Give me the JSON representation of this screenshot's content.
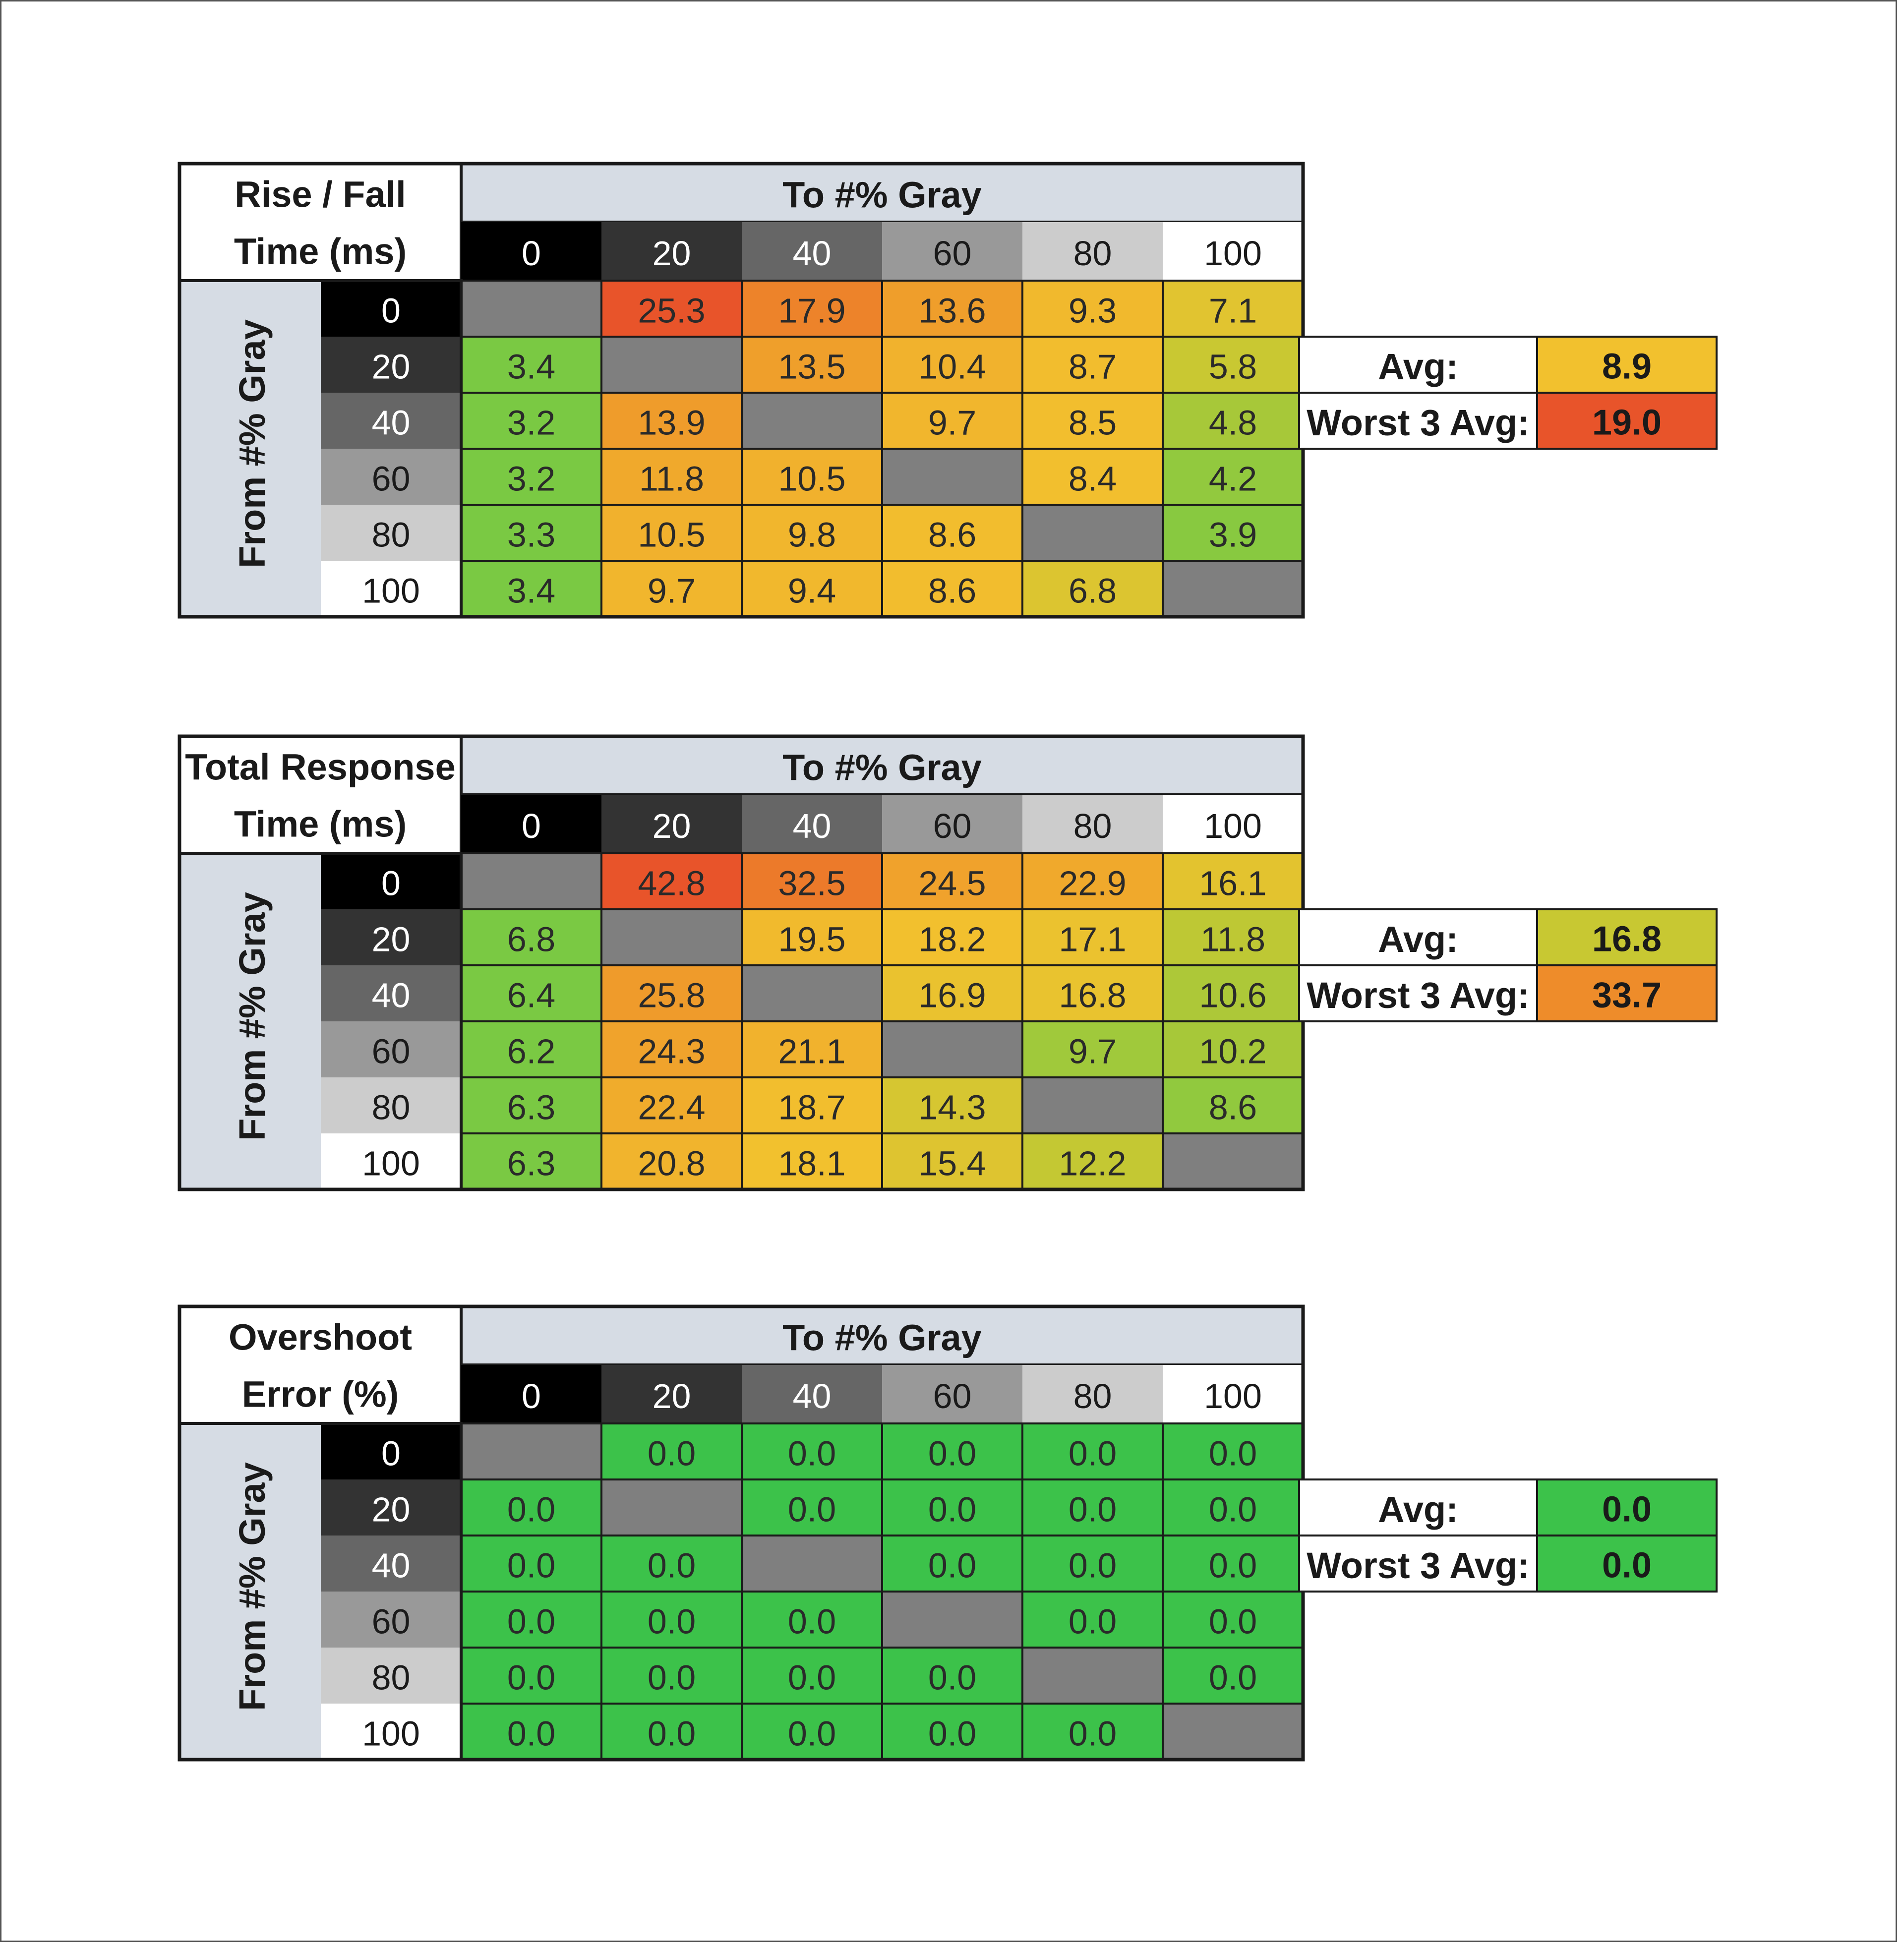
{
  "chart_data": [
    {
      "type": "heatmap",
      "title": "Rise / Fall Time (ms)",
      "title_lines": [
        "Rise / Fall",
        "Time (ms)"
      ],
      "xlabel": "To #% Gray",
      "ylabel": "From #% Gray",
      "x_categories": [
        "0",
        "20",
        "40",
        "60",
        "80",
        "100"
      ],
      "y_categories": [
        "0",
        "20",
        "40",
        "60",
        "80",
        "100"
      ],
      "values": [
        [
          null,
          25.3,
          17.9,
          13.6,
          9.3,
          7.1
        ],
        [
          3.4,
          null,
          13.5,
          10.4,
          8.7,
          5.8
        ],
        [
          3.2,
          13.9,
          null,
          9.7,
          8.5,
          4.8
        ],
        [
          3.2,
          11.8,
          10.5,
          null,
          8.4,
          4.2
        ],
        [
          3.3,
          10.5,
          9.8,
          8.6,
          null,
          3.9
        ],
        [
          3.4,
          9.7,
          9.4,
          8.6,
          6.8,
          null
        ]
      ],
      "value_labels": [
        [
          "",
          "25.3",
          "17.9",
          "13.6",
          "9.3",
          "7.1"
        ],
        [
          "3.4",
          "",
          "13.5",
          "10.4",
          "8.7",
          "5.8"
        ],
        [
          "3.2",
          "13.9",
          "",
          "9.7",
          "8.5",
          "4.8"
        ],
        [
          "3.2",
          "11.8",
          "10.5",
          "",
          "8.4",
          "4.2"
        ],
        [
          "3.3",
          "10.5",
          "9.8",
          "8.6",
          "",
          "3.9"
        ],
        [
          "3.4",
          "9.7",
          "9.4",
          "8.6",
          "6.8",
          ""
        ]
      ],
      "summary": [
        {
          "label": "Avg:",
          "value": "8.9",
          "color": "#f2c12e"
        },
        {
          "label": "Worst 3 Avg:",
          "value": "19.0",
          "color": "#e8542a"
        }
      ]
    },
    {
      "type": "heatmap",
      "title": "Total Response Time (ms)",
      "title_lines": [
        "Total Response",
        "Time (ms)"
      ],
      "xlabel": "To #% Gray",
      "ylabel": "From #% Gray",
      "x_categories": [
        "0",
        "20",
        "40",
        "60",
        "80",
        "100"
      ],
      "y_categories": [
        "0",
        "20",
        "40",
        "60",
        "80",
        "100"
      ],
      "values": [
        [
          null,
          42.8,
          32.5,
          24.5,
          22.9,
          16.1
        ],
        [
          6.8,
          null,
          19.5,
          18.2,
          17.1,
          11.8
        ],
        [
          6.4,
          25.8,
          null,
          16.9,
          16.8,
          10.6
        ],
        [
          6.2,
          24.3,
          21.1,
          null,
          9.7,
          10.2
        ],
        [
          6.3,
          22.4,
          18.7,
          14.3,
          null,
          8.6
        ],
        [
          6.3,
          20.8,
          18.1,
          15.4,
          12.2,
          null
        ]
      ],
      "value_labels": [
        [
          "",
          "42.8",
          "32.5",
          "24.5",
          "22.9",
          "16.1"
        ],
        [
          "6.8",
          "",
          "19.5",
          "18.2",
          "17.1",
          "11.8"
        ],
        [
          "6.4",
          "25.8",
          "",
          "16.9",
          "16.8",
          "10.6"
        ],
        [
          "6.2",
          "24.3",
          "21.1",
          "",
          "9.7",
          "10.2"
        ],
        [
          "6.3",
          "22.4",
          "18.7",
          "14.3",
          "",
          "8.6"
        ],
        [
          "6.3",
          "20.8",
          "18.1",
          "15.4",
          "12.2",
          ""
        ]
      ],
      "summary": [
        {
          "label": "Avg:",
          "value": "16.8",
          "color": "#c8c832"
        },
        {
          "label": "Worst 3 Avg:",
          "value": "33.7",
          "color": "#ee8c2a"
        }
      ]
    },
    {
      "type": "heatmap",
      "title": "Overshoot Error (%)",
      "title_lines": [
        "Overshoot",
        "Error (%)"
      ],
      "xlabel": "To #% Gray",
      "ylabel": "From #% Gray",
      "x_categories": [
        "0",
        "20",
        "40",
        "60",
        "80",
        "100"
      ],
      "y_categories": [
        "0",
        "20",
        "40",
        "60",
        "80",
        "100"
      ],
      "values": [
        [
          null,
          0.0,
          0.0,
          0.0,
          0.0,
          0.0
        ],
        [
          0.0,
          null,
          0.0,
          0.0,
          0.0,
          0.0
        ],
        [
          0.0,
          0.0,
          null,
          0.0,
          0.0,
          0.0
        ],
        [
          0.0,
          0.0,
          0.0,
          null,
          0.0,
          0.0
        ],
        [
          0.0,
          0.0,
          0.0,
          0.0,
          null,
          0.0
        ],
        [
          0.0,
          0.0,
          0.0,
          0.0,
          0.0,
          null
        ]
      ],
      "value_labels": [
        [
          "",
          "0.0",
          "0.0",
          "0.0",
          "0.0",
          "0.0"
        ],
        [
          "0.0",
          "",
          "0.0",
          "0.0",
          "0.0",
          "0.0"
        ],
        [
          "0.0",
          "0.0",
          "",
          "0.0",
          "0.0",
          "0.0"
        ],
        [
          "0.0",
          "0.0",
          "0.0",
          "",
          "0.0",
          "0.0"
        ],
        [
          "0.0",
          "0.0",
          "0.0",
          "0.0",
          "",
          "0.0"
        ],
        [
          "0.0",
          "0.0",
          "0.0",
          "0.0",
          "0.0",
          ""
        ]
      ],
      "summary": [
        {
          "label": "Avg:",
          "value": "0.0",
          "color": "#3cc24a"
        },
        {
          "label": "Worst 3 Avg:",
          "value": "0.0",
          "color": "#3cc24a"
        }
      ]
    }
  ],
  "colors": {
    "gray_shades": [
      "#000000",
      "#333333",
      "#666666",
      "#999999",
      "#cccccc",
      "#ffffff"
    ],
    "gray_text": [
      "#ffffff",
      "#ffffff",
      "#ffffff",
      "#1a1a1a",
      "#1a1a1a",
      "#1a1a1a"
    ],
    "diagonal": "#7f7f7f",
    "header_band": "#d6dce4",
    "green": "#3cc24a",
    "scale": {
      "rise_fall": {
        "low": 3.5,
        "mid": 8,
        "high": 25
      },
      "total": {
        "low": 7,
        "mid": 18,
        "high": 40
      }
    },
    "palette": [
      "#7ac943",
      "#c8c832",
      "#f2c12e",
      "#ee8c2a",
      "#e8542a"
    ]
  }
}
